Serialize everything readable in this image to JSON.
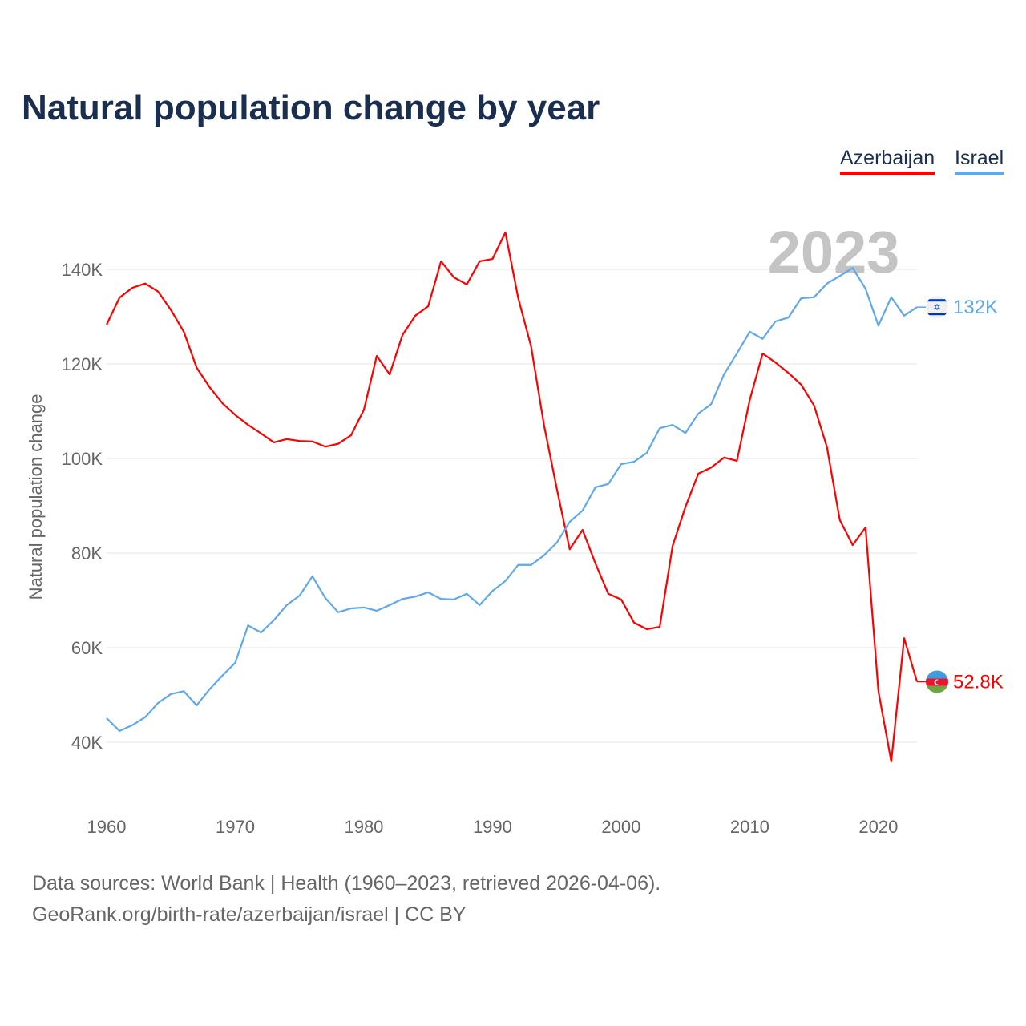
{
  "title": "Natural population change by year",
  "footer": {
    "line1": "Data sources: World Bank | Health (1960–2023, retrieved 2026-04-06).",
    "line2": "GeoRank.org/birth-rate/azerbaijan/israel | CC BY"
  },
  "chart_data": {
    "type": "line",
    "title": "Natural population change by year",
    "xlabel": "",
    "ylabel": "Natural population change",
    "watermark_year": "2023",
    "xlim": [
      1960,
      2023
    ],
    "ylim": [
      30000,
      150000
    ],
    "x_ticks": [
      1960,
      1970,
      1980,
      1990,
      2000,
      2010,
      2020
    ],
    "x_tick_labels": [
      "1960",
      "1970",
      "1980",
      "1990",
      "2000",
      "2010",
      "2020"
    ],
    "y_ticks": [
      40000,
      60000,
      80000,
      100000,
      120000,
      140000
    ],
    "y_tick_labels": [
      "40K",
      "60K",
      "80K",
      "100K",
      "120K",
      "140K"
    ],
    "grid": true,
    "legend_position": "top-right",
    "series": [
      {
        "name": "Azerbaijan",
        "color": "#ff0000",
        "flag": "azerbaijan-flag",
        "end_label": "52.8K",
        "values": [
          128.3,
          134,
          136.1,
          137,
          135.3,
          131.4,
          126.8,
          119.2,
          115.1,
          111.7,
          109.2,
          107.1,
          105.3,
          103.4,
          104.1,
          103.7,
          103.6,
          102.5,
          103.1,
          104.9,
          110.3,
          121.7,
          117.8,
          126.1,
          130.2,
          132.2,
          141.7,
          138.3,
          136.8,
          141.7,
          142.2,
          147.8,
          133.9,
          123.7,
          107.1,
          93.6,
          80.8,
          84.9,
          77.8,
          71.4,
          70.2,
          65.3,
          63.9,
          64.4,
          81.5,
          89.8,
          96.8,
          98.1,
          100.2,
          99.5,
          112.4,
          122.2,
          120.3,
          118.1,
          115.6,
          111.2,
          102.4,
          87,
          81.7,
          85.4,
          50.8,
          35.9,
          62,
          52.8
        ]
      },
      {
        "name": "Israel",
        "color": "#5fa8ea",
        "flag": "israel-flag",
        "end_label": "132K",
        "values": [
          45.1,
          42.4,
          43.6,
          45.3,
          48.3,
          50.2,
          50.8,
          47.8,
          51.2,
          54.1,
          56.8,
          64.7,
          63.2,
          65.8,
          69,
          71,
          75.1,
          70.5,
          67.5,
          68.3,
          68.5,
          67.8,
          69,
          70.3,
          70.8,
          71.7,
          70.3,
          70.2,
          71.4,
          69,
          72,
          74.1,
          77.5,
          77.5,
          79.5,
          82.2,
          86.6,
          89,
          93.9,
          94.6,
          98.8,
          99.3,
          101.2,
          106.4,
          107.1,
          105.4,
          109.5,
          111.5,
          117.8,
          122.2,
          126.8,
          125.3,
          129,
          129.8,
          133.9,
          134.1,
          137,
          138.6,
          140.3,
          135.9,
          128.1,
          134.1,
          130.2,
          132
        ]
      }
    ],
    "values_unit": "thousands"
  }
}
